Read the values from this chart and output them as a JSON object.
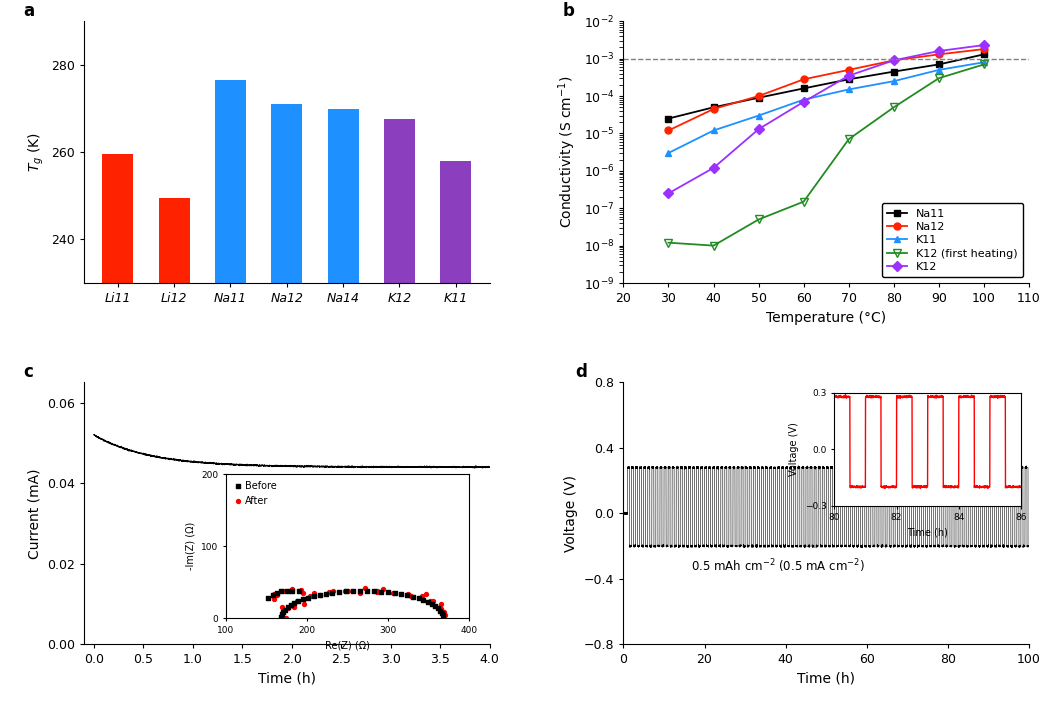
{
  "panel_a": {
    "categories": [
      "Li11",
      "Li12",
      "Na11",
      "Na12",
      "Na14",
      "K12",
      "K11"
    ],
    "values": [
      259.5,
      249.5,
      276.5,
      271.0,
      270.0,
      267.5,
      258.0
    ],
    "colors": [
      "#FF2200",
      "#FF2200",
      "#1E90FF",
      "#1E90FF",
      "#1E90FF",
      "#8B3FBF",
      "#8B3FBF"
    ],
    "ylabel": "$T_g$ (K)",
    "ylim": [
      230,
      290
    ],
    "yticks": [
      240,
      260,
      280
    ]
  },
  "panel_b": {
    "Na11_x": [
      30,
      40,
      50,
      60,
      70,
      80,
      90,
      100
    ],
    "Na11_y": [
      2.5e-05,
      5e-05,
      9e-05,
      0.00016,
      0.00028,
      0.00045,
      0.0007,
      0.0013
    ],
    "Na12_x": [
      30,
      40,
      50,
      60,
      70,
      80,
      90,
      100
    ],
    "Na12_y": [
      1.2e-05,
      4.5e-05,
      0.0001,
      0.00028,
      0.0005,
      0.0009,
      0.0013,
      0.0018
    ],
    "K11_x": [
      30,
      40,
      50,
      60,
      70,
      80,
      90,
      100
    ],
    "K11_y": [
      3e-06,
      1.2e-05,
      3e-05,
      8e-05,
      0.00015,
      0.00025,
      0.0005,
      0.0008
    ],
    "K12fh_x": [
      30,
      40,
      50,
      60,
      70,
      80,
      90,
      100
    ],
    "K12fh_y": [
      1.2e-08,
      1e-08,
      5e-08,
      1.5e-07,
      7e-06,
      5e-05,
      0.0003,
      0.0007
    ],
    "K12_x": [
      30,
      40,
      50,
      60,
      70,
      80,
      90,
      100
    ],
    "K12_y": [
      2.5e-07,
      1.2e-06,
      1.3e-05,
      7e-05,
      0.00035,
      0.0009,
      0.0016,
      0.0023
    ],
    "dashed_y": 0.001,
    "ylabel": "Conductivity (S cm$^{-1}$)",
    "xlabel": "Temperature (°C)",
    "xlim": [
      20,
      110
    ],
    "ylim_log": [
      -9,
      -2
    ]
  },
  "panel_c": {
    "ylabel": "Current (mA)",
    "xlabel": "Time (h)",
    "xlim": [
      -0.1,
      4
    ],
    "ylim": [
      0,
      0.065
    ],
    "yticks": [
      0,
      0.02,
      0.04,
      0.06
    ],
    "inset": {
      "xlim": [
        100,
        400
      ],
      "ylim": [
        0,
        200
      ],
      "xticks": [
        100,
        200,
        300,
        400
      ],
      "yticks": [
        0,
        100,
        200
      ],
      "xlabel": "Re(Z) (Ω)",
      "ylabel": "-Im(Z) (Ω)"
    }
  },
  "panel_d": {
    "ylabel": "Voltage (V)",
    "xlabel": "Time (h)",
    "xlim": [
      0,
      100
    ],
    "ylim": [
      -0.8,
      0.8
    ],
    "yticks": [
      -0.8,
      -0.4,
      0,
      0.4,
      0.8
    ],
    "annotation": "0.5 mAh cm$^{-2}$ (0.5 mA cm$^{-2}$)",
    "inset": {
      "xlim": [
        80,
        86
      ],
      "ylim": [
        -0.3,
        0.3
      ],
      "xlabel": "Time (h)",
      "ylabel": "Voltage (V)"
    }
  },
  "panel_labels_fontsize": 12,
  "axis_label_fontsize": 10,
  "tick_fontsize": 9
}
